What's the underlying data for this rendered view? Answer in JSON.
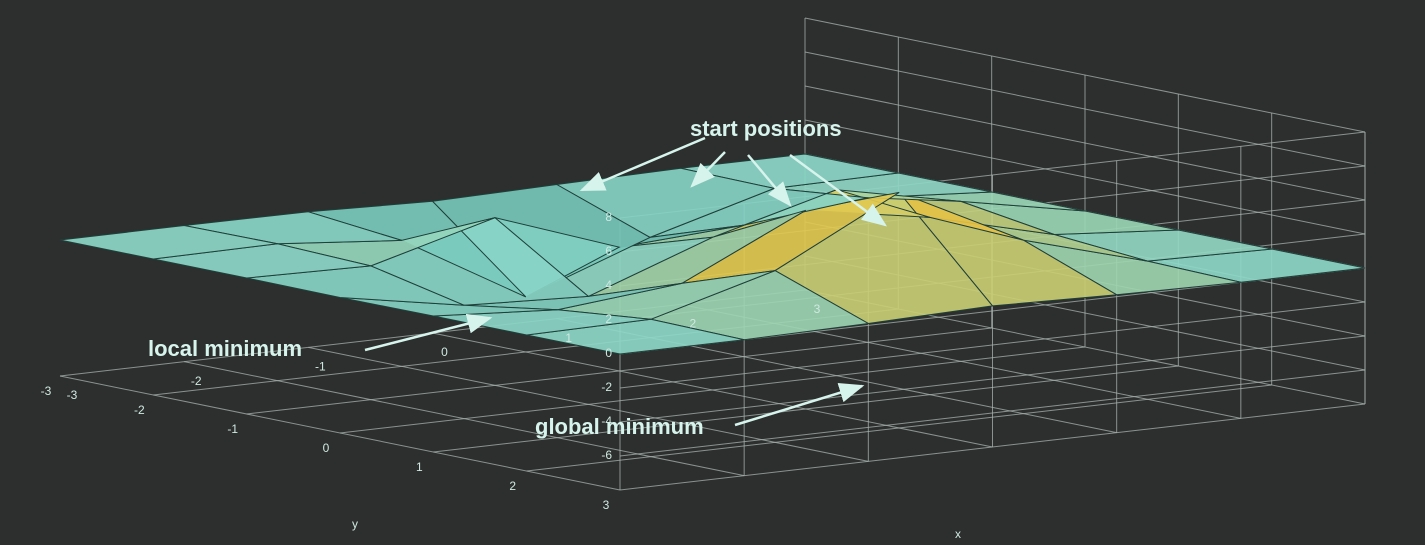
{
  "chart_data": {
    "type": "surface",
    "x": [
      -3,
      -2,
      -1,
      0,
      1,
      2,
      3
    ],
    "y": [
      -3,
      -2,
      -1,
      0,
      1,
      2,
      3
    ],
    "z": [
      [
        0,
        0.01,
        -0.03,
        -0.25,
        -0.11,
        0,
        0
      ],
      [
        0,
        0.05,
        -0.59,
        -4.76,
        -2.1,
        -0.06,
        0
      ],
      [
        0,
        -0.13,
        1.86,
        -0.72,
        -0.27,
        0.5,
        0
      ],
      [
        -0.03,
        -1.33,
        -1.65,
        0.98,
        2.94,
        1.41,
        0
      ],
      [
        0,
        -0.48,
        0.23,
        3.69,
        2.43,
        0.58,
        0
      ],
      [
        0,
        0.08,
        2.1,
        5.86,
        2.21,
        0.13,
        0
      ],
      [
        0,
        0,
        0.11,
        0.3,
        0.11,
        0,
        0
      ]
    ],
    "xlim": [
      -3,
      3
    ],
    "ylim": [
      -3,
      3
    ],
    "zlim": [
      -8,
      8
    ],
    "xticks": [
      -3,
      -2,
      -1,
      0,
      1,
      2,
      3
    ],
    "yticks": [
      -3,
      -2,
      -1,
      0,
      1,
      2,
      3
    ],
    "zticks": [
      -6,
      -4,
      -2,
      0,
      2,
      4,
      6,
      8
    ],
    "xlabel": "x",
    "ylabel": "y",
    "grid": true,
    "annotations": [
      "start positions",
      "local minimum",
      "global minimum"
    ]
  }
}
